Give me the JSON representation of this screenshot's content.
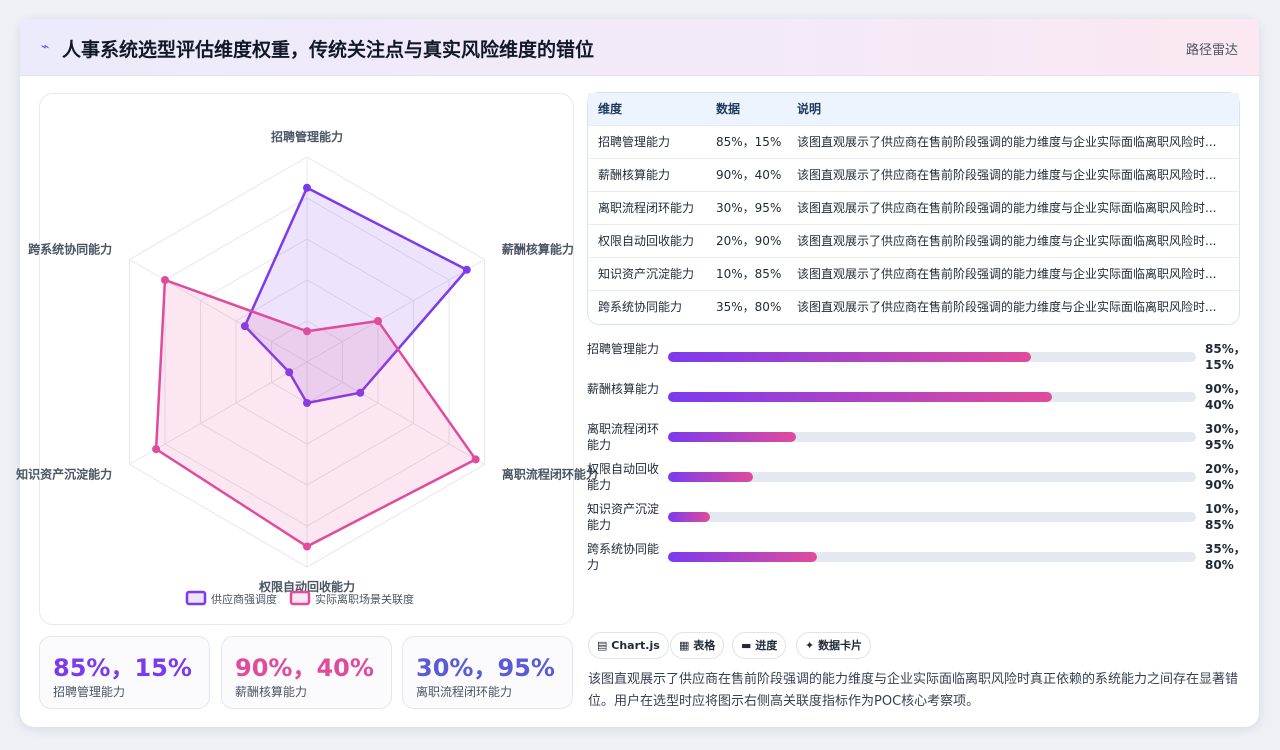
{
  "header": {
    "icon": "chart-pulse-icon",
    "title": "人事系统选型评估维度权重，传统关注点与真实风险维度的错位",
    "tag": "路径雷达"
  },
  "chart_data": {
    "type": "radar",
    "axes": [
      "招聘管理能力",
      "薪酬核算能力",
      "离职流程闭环能力",
      "权限自动回收能力",
      "知识资产沉淀能力",
      "跨系统协同能力"
    ],
    "range": [
      0,
      100
    ],
    "rings": 5,
    "series": [
      {
        "name": "供应商强调度",
        "values": [
          85,
          90,
          30,
          20,
          10,
          35
        ],
        "color": "#7c3aed"
      },
      {
        "name": "实际离职场景关联度",
        "values": [
          15,
          40,
          95,
          90,
          85,
          80
        ],
        "color": "#e04b9c"
      }
    ],
    "legend": "bottom"
  },
  "kpis": [
    {
      "value": "85%，15%",
      "label": "招聘管理能力",
      "color": "#7c3aed"
    },
    {
      "value": "90%，40%",
      "label": "薪酬核算能力",
      "color": "#e04b9c"
    },
    {
      "value": "30%，95%",
      "label": "离职流程闭环能力",
      "color": "#5b5bd6"
    }
  ],
  "table": {
    "headers": [
      "维度",
      "数据",
      "说明"
    ],
    "rows": [
      [
        "招聘管理能力",
        "85%，15%",
        "该图直观展示了供应商在售前阶段强调的能力维度与企业实际面临离职风险时..."
      ],
      [
        "薪酬核算能力",
        "90%，40%",
        "该图直观展示了供应商在售前阶段强调的能力维度与企业实际面临离职风险时..."
      ],
      [
        "离职流程闭环能力",
        "30%，95%",
        "该图直观展示了供应商在售前阶段强调的能力维度与企业实际面临离职风险时..."
      ],
      [
        "权限自动回收能力",
        "20%，90%",
        "该图直观展示了供应商在售前阶段强调的能力维度与企业实际面临离职风险时..."
      ],
      [
        "知识资产沉淀能力",
        "10%，85%",
        "该图直观展示了供应商在售前阶段强调的能力维度与企业实际面临离职风险时..."
      ],
      [
        "跨系统协同能力",
        "35%，80%",
        "该图直观展示了供应商在售前阶段强调的能力维度与企业实际面临离职风险时..."
      ]
    ]
  },
  "progress": [
    {
      "label": "招聘管理能力",
      "value": "85%，15%",
      "fill": 0.687
    },
    {
      "label": "薪酬核算能力",
      "value": "90%，40%",
      "fill": 0.727
    },
    {
      "label": "离职流程闭环能力",
      "value": "30%，95%",
      "fill": 0.242
    },
    {
      "label": "权限自动回收能力",
      "value": "20%，90%",
      "fill": 0.161
    },
    {
      "label": "知识资产沉淀能力",
      "value": "10%，85%",
      "fill": 0.08
    },
    {
      "label": "跨系统协同能力",
      "value": "35%，80%",
      "fill": 0.282
    }
  ],
  "chips": [
    {
      "icon": "chart-icon",
      "glyph": "▤",
      "label": "Chart.js"
    },
    {
      "icon": "table-icon",
      "glyph": "▦",
      "label": "表格"
    },
    {
      "icon": "progress-icon",
      "glyph": "▬",
      "label": "进度"
    },
    {
      "icon": "card-icon",
      "glyph": "✦",
      "label": "数据卡片"
    }
  ],
  "note": "该图直观展示了供应商在售前阶段强调的能力维度与企业实际面临离职风险时真正依赖的系统能力之间存在显著错位。用户在选型时应将图示右侧高关联度指标作为POC核心考察项。"
}
